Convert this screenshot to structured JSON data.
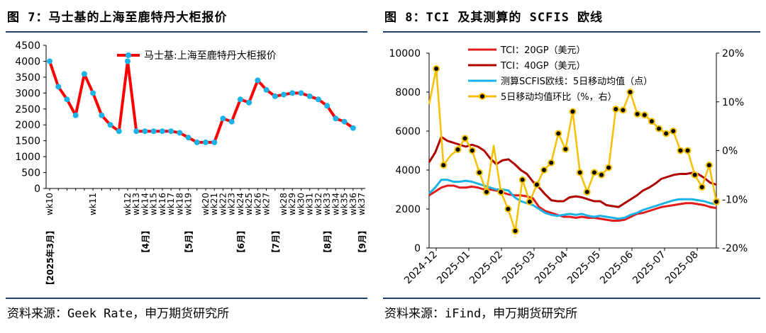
{
  "left": {
    "title": "图 7：马士基的上海至鹿特丹大柜报价",
    "source": "资料来源：Geek Rate，申万期货研究所",
    "chart_data": {
      "type": "line",
      "ylim": [
        0,
        4500
      ],
      "yticks": [
        0,
        500,
        1000,
        1500,
        2000,
        2500,
        3000,
        3500,
        4000,
        4500
      ],
      "legend": [
        "马士基:上海至鹿特丹大柜报价"
      ],
      "legend_position": "top-right",
      "series": [
        {
          "name": "马士基:上海至鹿特丹大柜报价",
          "color": "#ff0000",
          "values": [
            4000,
            3200,
            2800,
            2300,
            3600,
            3000,
            2300,
            2000,
            1800,
            4000,
            1800,
            1800,
            1800,
            1800,
            1800,
            1750,
            1600,
            1450,
            1450,
            1450,
            2200,
            2100,
            2800,
            2700,
            3400,
            3100,
            2900,
            2950,
            3000,
            3000,
            2900,
            2800,
            2600,
            2200,
            2100,
            1900
          ]
        }
      ],
      "week_labels": [
        {
          "index": 0,
          "text": "wk10"
        },
        {
          "index": 5,
          "text": "wk11"
        },
        {
          "index": 9,
          "text": "wk12"
        },
        {
          "index": 10,
          "text": "wk13"
        },
        {
          "index": 11,
          "text": "wk14"
        },
        {
          "index": 12,
          "text": "wk15"
        },
        {
          "index": 13,
          "text": "wk16"
        },
        {
          "index": 14,
          "text": "wk17"
        },
        {
          "index": 15,
          "text": "wk18"
        },
        {
          "index": 16,
          "text": "wk19"
        },
        {
          "index": 18,
          "text": "wk20"
        },
        {
          "index": 19,
          "text": "wk21"
        },
        {
          "index": 20,
          "text": "wk22"
        },
        {
          "index": 21,
          "text": "wk23"
        },
        {
          "index": 22,
          "text": "wk24"
        },
        {
          "index": 23,
          "text": "wk25"
        },
        {
          "index": 24,
          "text": "wk26"
        },
        {
          "index": 25,
          "text": "wk27"
        },
        {
          "index": 27,
          "text": "wk28"
        },
        {
          "index": 28,
          "text": "wk29"
        },
        {
          "index": 29,
          "text": "wk30"
        },
        {
          "index": 30,
          "text": "wk31"
        },
        {
          "index": 31,
          "text": "wk32"
        },
        {
          "index": 32,
          "text": "wk33"
        },
        {
          "index": 33,
          "text": "wk34"
        },
        {
          "index": 34,
          "text": "wk35"
        },
        {
          "index": 35,
          "text": "wk36"
        },
        {
          "index": 36,
          "text": "wk37"
        }
      ],
      "month_labels": [
        {
          "index": 0,
          "text": "【2025年3月】"
        },
        {
          "index": 11,
          "text": "【4月】"
        },
        {
          "index": 16,
          "text": "【5月】"
        },
        {
          "index": 22,
          "text": "【6月】"
        },
        {
          "index": 26,
          "text": "【7月】"
        },
        {
          "index": 32,
          "text": "【8月】"
        },
        {
          "index": 36,
          "text": "【9月】"
        }
      ]
    }
  },
  "right": {
    "title": "图 8：TCI 及其测算的 SCFIS 欧线",
    "source": "资料来源：iFind，申万期货研究所",
    "chart_data": {
      "type": "line",
      "ylim_left": [
        0,
        10000
      ],
      "yticks_left": [
        0,
        2000,
        4000,
        6000,
        8000,
        10000
      ],
      "ylim_right": [
        -20,
        20
      ],
      "yticks_right": [
        "-20%",
        "-10%",
        "0%",
        "10%",
        "20%"
      ],
      "yticks_right_values": [
        -20,
        -10,
        0,
        10,
        20
      ],
      "x_labels": [
        "2024-12",
        "2025-01",
        "2025-02",
        "2025-03",
        "2025-04",
        "2025-05",
        "2025-06",
        "2025-07",
        "2025-08"
      ],
      "legend_position": "top-center",
      "series": [
        {
          "name": "TCI：20GP（美元）",
          "color": "#e21c1c",
          "axis": "left",
          "values": [
            2700,
            2900,
            3100,
            3200,
            3200,
            3100,
            3100,
            3150,
            3100,
            3000,
            3000,
            2950,
            2850,
            2750,
            2700,
            2700,
            2650,
            2550,
            2100,
            1900,
            1800,
            1700,
            1600,
            1600,
            1550,
            1600,
            1550,
            1550,
            1500,
            1450,
            1400,
            1400,
            1450,
            1600,
            1750,
            1800,
            1900,
            2000,
            2100,
            2150,
            2200,
            2250,
            2300,
            2300,
            2250,
            2200,
            2100,
            2050
          ]
        },
        {
          "name": "TCI：40GP（美元）",
          "color": "#b00000",
          "axis": "left",
          "values": [
            4400,
            4900,
            5700,
            5500,
            5400,
            5300,
            5200,
            5300,
            5200,
            5000,
            4600,
            4300,
            4500,
            4550,
            4300,
            4000,
            3800,
            3400,
            3100,
            2750,
            2450,
            2400,
            2400,
            2600,
            2650,
            2600,
            2500,
            2400,
            2400,
            2200,
            2150,
            2100,
            2300,
            2500,
            2700,
            2950,
            3100,
            3300,
            3550,
            3650,
            3750,
            3800,
            3800,
            3850,
            3800,
            3600,
            3350,
            3250
          ]
        },
        {
          "name": "测算SCFIS欧线：5日移动均值（点）",
          "color": "#1ab3e8",
          "axis": "left",
          "values": [
            2800,
            3100,
            3500,
            3500,
            3400,
            3400,
            3450,
            3400,
            3300,
            3200,
            3100,
            3000,
            3000,
            2950,
            2600,
            2400,
            2300,
            2200,
            2000,
            1800,
            1700,
            1650,
            1700,
            1750,
            1700,
            1750,
            1650,
            1600,
            1650,
            1600,
            1550,
            1500,
            1550,
            1700,
            1800,
            1950,
            2050,
            2150,
            2250,
            2350,
            2450,
            2500,
            2500,
            2500,
            2450,
            2400,
            2300,
            2250
          ]
        },
        {
          "name": "5日移动均值环比（%，右）",
          "color": "#f5c000",
          "axis": "right",
          "values": [
            9.5,
            16.8,
            -3.0,
            -1.0,
            0.2,
            2.5,
            0.0,
            -4.5,
            -8.5,
            1.0,
            -8.5,
            -12.0,
            -16.5,
            -6.0,
            -10.5,
            -7.0,
            -4.0,
            -2.5,
            3.5,
            0.3,
            8.0,
            -4.5,
            -8.5,
            -4.5,
            -5.0,
            -3.5,
            8.5,
            8.3,
            12.0,
            7.5,
            7.3,
            6.0,
            4.5,
            3.5,
            4.0,
            0.0,
            0.0,
            -5.0,
            -7.5,
            -3.0,
            -10.5
          ],
          "marked_values": [
            16.8,
            -3.0,
            -1.0,
            0.2,
            2.5,
            -4.5,
            -8.5,
            1.0,
            -12.0,
            -16.5,
            -6.0,
            -10.5,
            -7.0,
            -4.0,
            -2.5,
            3.5,
            0.3,
            8.0,
            -4.5,
            -8.5,
            -4.5,
            -5.0,
            -3.5,
            8.5,
            8.3,
            12.0,
            7.5,
            7.3,
            6.0,
            4.5,
            3.5,
            4.0,
            0.0,
            0.0,
            -7.5,
            -3.0,
            -10.5
          ]
        }
      ]
    }
  }
}
